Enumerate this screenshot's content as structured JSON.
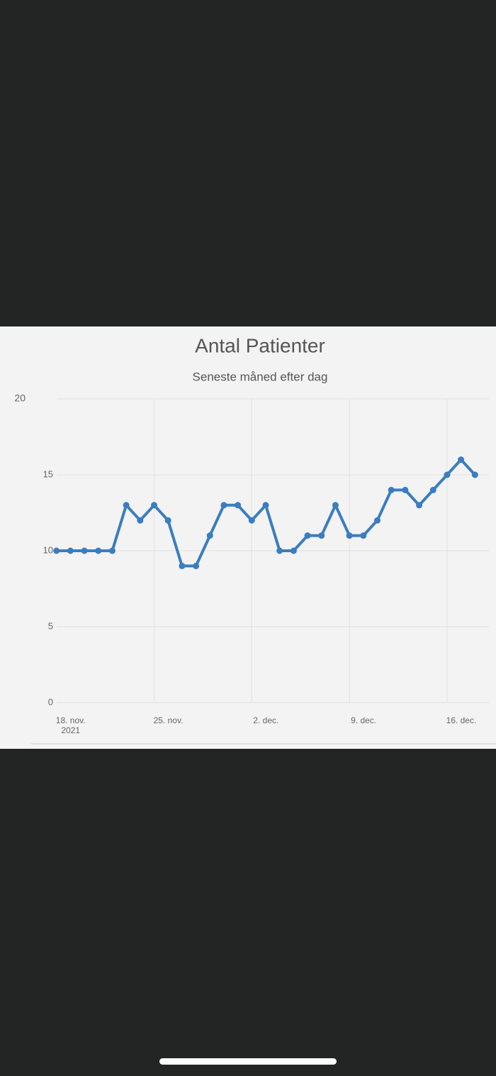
{
  "chart_data": {
    "type": "line",
    "title": "Antal Patienter",
    "subtitle": "Seneste måned efter dag",
    "x": [
      "2021-11-18",
      "2021-11-19",
      "2021-11-20",
      "2021-11-21",
      "2021-11-22",
      "2021-11-23",
      "2021-11-24",
      "2021-11-25",
      "2021-11-26",
      "2021-11-27",
      "2021-11-28",
      "2021-11-29",
      "2021-11-30",
      "2021-12-01",
      "2021-12-02",
      "2021-12-03",
      "2021-12-04",
      "2021-12-05",
      "2021-12-06",
      "2021-12-07",
      "2021-12-08",
      "2021-12-09",
      "2021-12-10",
      "2021-12-11",
      "2021-12-12",
      "2021-12-13",
      "2021-12-14",
      "2021-12-15",
      "2021-12-16",
      "2021-12-17",
      "2021-12-18"
    ],
    "series": [
      {
        "name": "Antal Patienter",
        "color": "#3a7dc0",
        "values": [
          10,
          10,
          10,
          10,
          10,
          13,
          12,
          13,
          12,
          9,
          9,
          11,
          13,
          13,
          12,
          13,
          10,
          10,
          11,
          11,
          13,
          11,
          11,
          12,
          14,
          14,
          13,
          14,
          15,
          16,
          15
        ]
      }
    ],
    "xlim": [
      "2021-11-17",
      "2021-12-19"
    ],
    "xticks": [
      {
        "value": "2021-11-18",
        "label": "18. nov. 2021"
      },
      {
        "value": "2021-11-25",
        "label": "25. nov."
      },
      {
        "value": "2021-12-02",
        "label": "2. dec."
      },
      {
        "value": "2021-12-09",
        "label": "9. dec."
      },
      {
        "value": "2021-12-16",
        "label": "16. dec."
      }
    ],
    "ylim": [
      0,
      20
    ],
    "yticks": [
      0,
      5,
      10,
      15,
      20
    ],
    "grid": true
  }
}
